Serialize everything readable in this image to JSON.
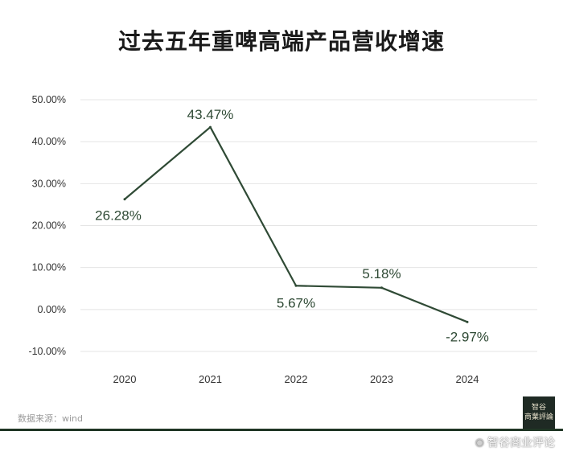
{
  "title": "过去五年重啤高端产品营收增速",
  "source_text": "数据来源：wind",
  "stamp": {
    "line1": "智谷",
    "line2": "商業評論"
  },
  "watermark": {
    "icon": "weibo-icon",
    "text": "智谷商业评论"
  },
  "colors": {
    "line": "#2f4a35",
    "label": "#2f4a35",
    "bottom_bar": "#1f3524"
  },
  "chart_data": {
    "type": "line",
    "title": "过去五年重啤高端产品营收增速",
    "categories": [
      "2020",
      "2021",
      "2022",
      "2023",
      "2024"
    ],
    "series": [
      {
        "values": [
          26.28,
          43.47,
          5.67,
          5.18,
          -2.97
        ]
      }
    ],
    "data_labels": [
      "26.28%",
      "43.47%",
      "5.67%",
      "5.18%",
      "-2.97%"
    ],
    "yticks": [
      -10,
      0,
      10,
      20,
      30,
      40,
      50
    ],
    "ytick_labels": [
      "-10.00%",
      "0.00%",
      "10.00%",
      "20.00%",
      "30.00%",
      "40.00%",
      "50.00%"
    ],
    "ylim": [
      -10,
      50
    ],
    "xlabel": "",
    "ylabel": "",
    "grid": true,
    "legend": "none"
  }
}
